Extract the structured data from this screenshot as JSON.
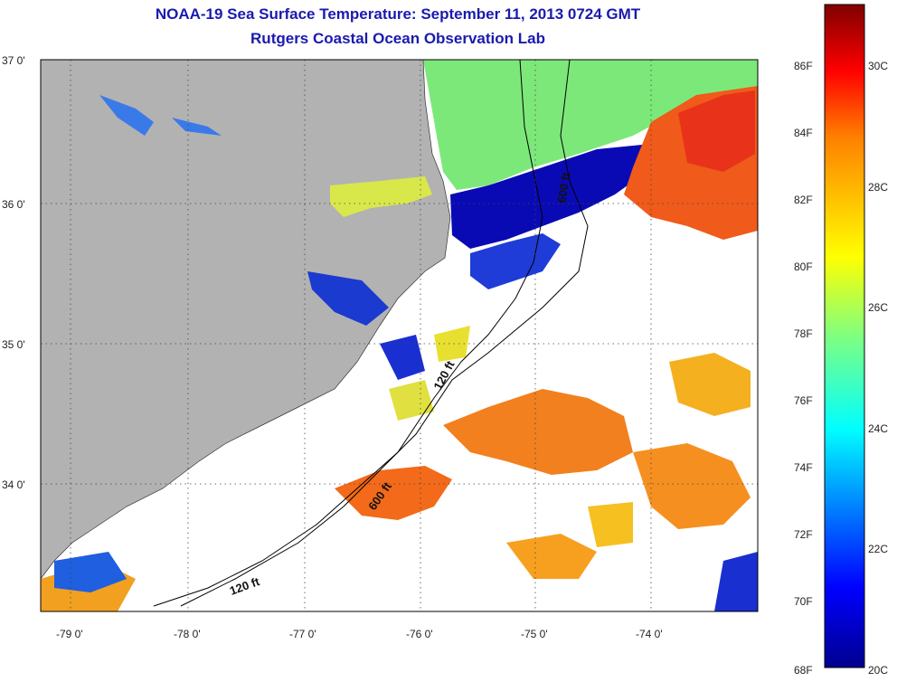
{
  "title": "NOAA-19 Sea Surface Temperature:  September 11, 2013 0724 GMT",
  "subtitle": "Rutgers Coastal Ocean Observation Lab",
  "lat_labels": [
    "37 0'",
    "36 0'",
    "35 0'",
    "34 0'"
  ],
  "lon_labels": [
    "-79 0'",
    "-78 0'",
    "-77 0'",
    "-76 0'",
    "-75 0'",
    "-74 0'"
  ],
  "contour_labels": [
    "120 ft",
    "600 ft",
    "120 ft",
    "600 ft"
  ],
  "colorbar": {
    "fahrenheit": [
      "86F",
      "84F",
      "82F",
      "80F",
      "78F",
      "76F",
      "74F",
      "72F",
      "70F",
      "68F"
    ],
    "celsius": [
      "30C",
      "28C",
      "26C",
      "24C",
      "22C",
      "20C"
    ],
    "range_f": [
      68,
      87.5
    ],
    "colors": [
      "#00008f",
      "#0000ff",
      "#0080ff",
      "#00ffff",
      "#80ff80",
      "#ffff00",
      "#ff8000",
      "#ff0000",
      "#800000"
    ]
  },
  "colors": {
    "land": "#b2b2b2",
    "cloud": "#ffffff",
    "title": "#1a1ab0"
  }
}
